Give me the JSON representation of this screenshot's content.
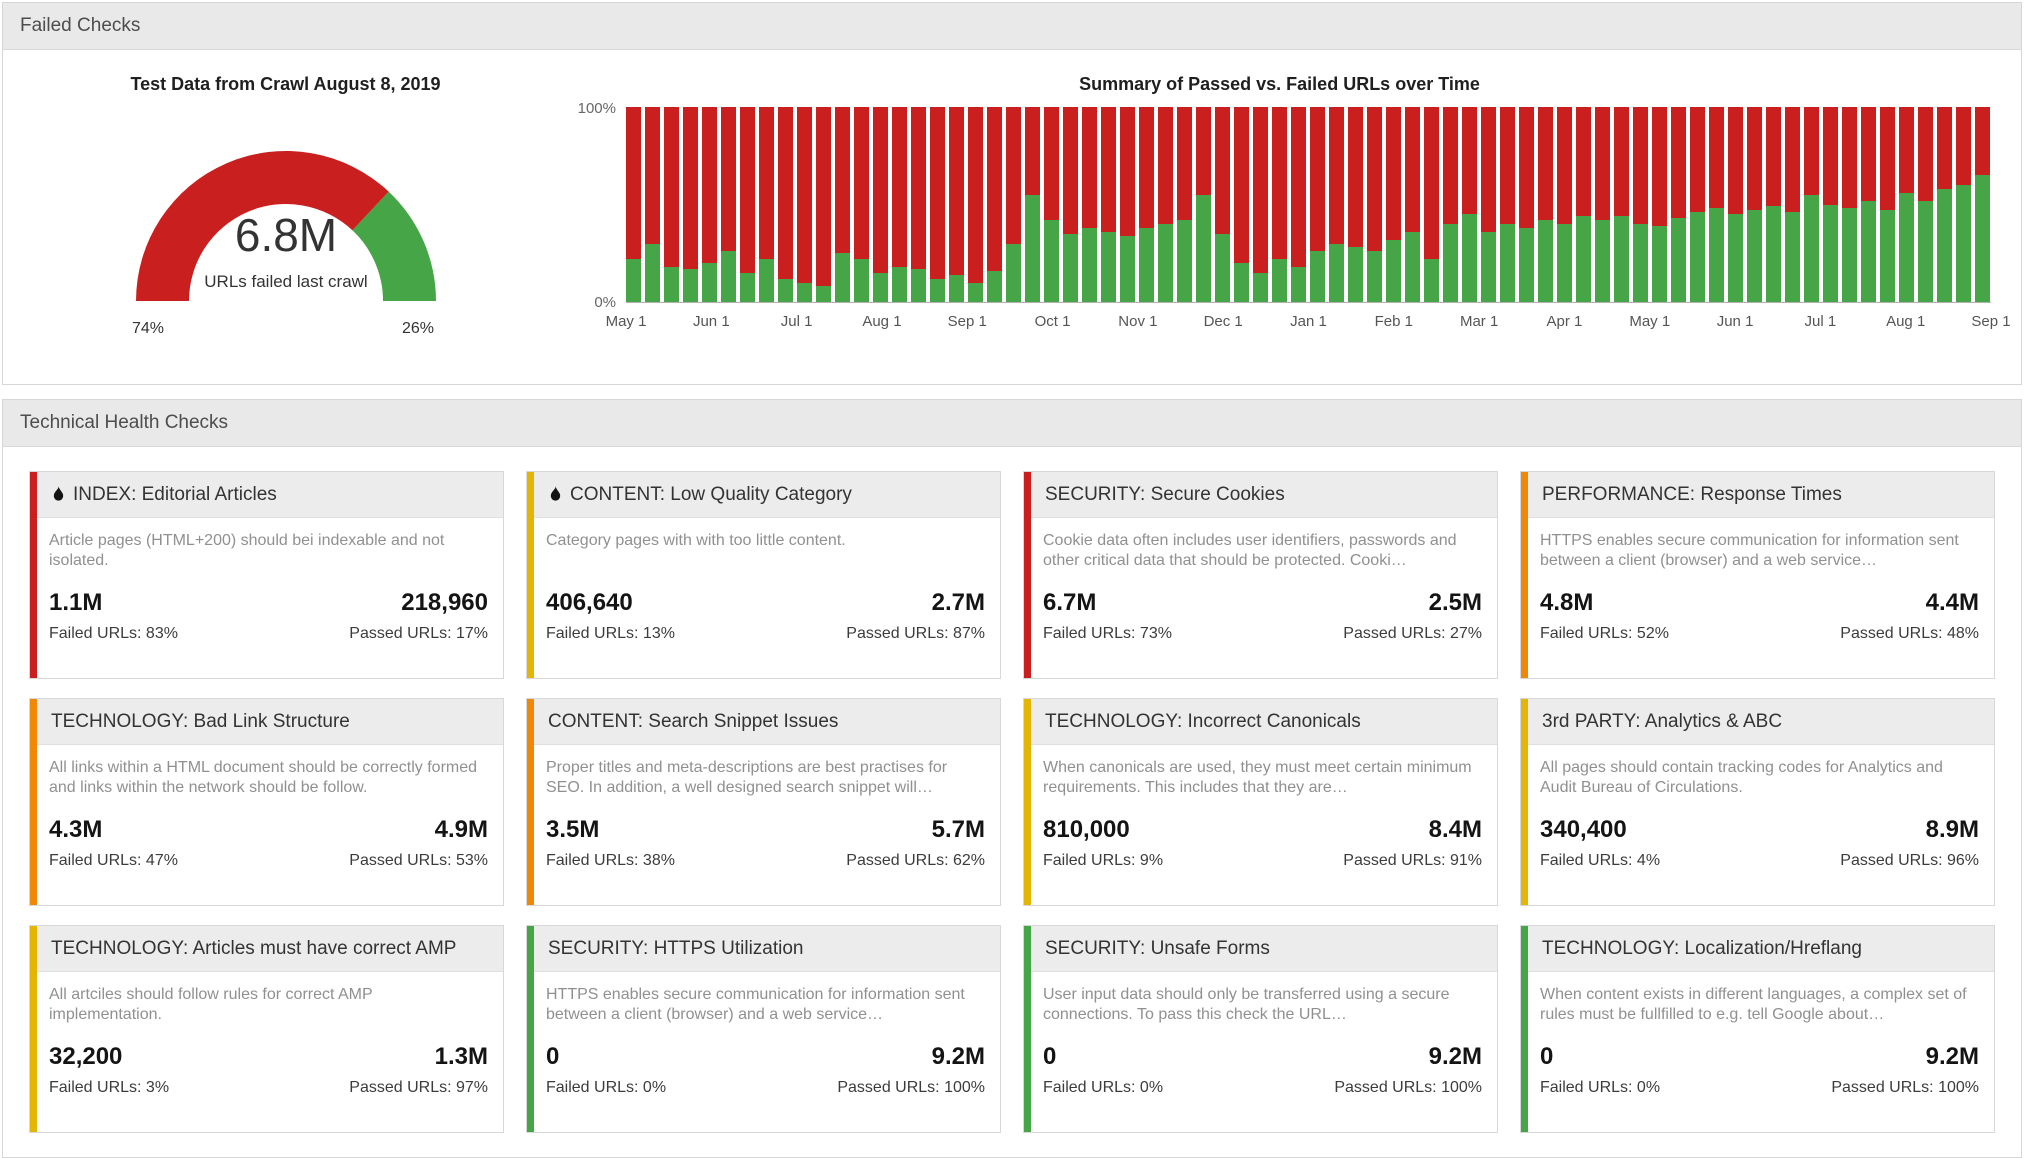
{
  "panels": {
    "failed_checks": {
      "title": "Failed Checks"
    },
    "technical_health": {
      "title": "Technical Health Checks"
    }
  },
  "colors": {
    "passed_green": "#46a546",
    "failed_red": "#c9201f",
    "accent_red": "#c9201f",
    "accent_orange": "#ef8807",
    "accent_yellow": "#e3b505",
    "accent_green": "#46a546"
  },
  "chart_data": [
    {
      "type": "gauge",
      "title": "Test Data from Crawl August 8, 2019",
      "center_value": "6.8M",
      "center_label": "URLs failed last crawl",
      "left_label": "74%",
      "right_label": "26%",
      "segments": [
        {
          "name": "Failed",
          "pct": 74,
          "color": "#c9201f"
        },
        {
          "name": "Passed",
          "pct": 26,
          "color": "#46a546"
        }
      ]
    },
    {
      "type": "bar",
      "stacked": true,
      "title": "Summary of Passed vs. Failed URLs over Time",
      "ylabel": "",
      "xlabel": "",
      "y_axis": {
        "max_label": "100%",
        "min_label": "0%",
        "range": [
          0,
          100
        ]
      },
      "x_tick_labels": [
        "May 1",
        "Jun 1",
        "Jul 1",
        "Aug 1",
        "Sep 1",
        "Oct 1",
        "Nov 1",
        "Dec 1",
        "Jan 1",
        "Feb 1",
        "Mar 1",
        "Apr 1",
        "May 1",
        "Jun 1",
        "Jul 1",
        "Aug 1",
        "Sep 1"
      ],
      "series": [
        {
          "name": "Passed",
          "color": "#46a546",
          "values": [
            22,
            30,
            18,
            17,
            20,
            26,
            15,
            22,
            12,
            10,
            8,
            25,
            22,
            15,
            18,
            17,
            12,
            14,
            10,
            16,
            30,
            55,
            42,
            35,
            38,
            36,
            34,
            38,
            40,
            42,
            55,
            35,
            20,
            15,
            22,
            18,
            26,
            30,
            28,
            26,
            32,
            36,
            22,
            40,
            45,
            36,
            40,
            38,
            42,
            40,
            44,
            42,
            44,
            40,
            39,
            43,
            46,
            48,
            45,
            47,
            49,
            46,
            55,
            50,
            48,
            52,
            47,
            56,
            52,
            58,
            60,
            65
          ]
        },
        {
          "name": "Failed",
          "color": "#c9201f",
          "values": [
            78,
            70,
            82,
            83,
            80,
            74,
            85,
            78,
            88,
            90,
            92,
            75,
            78,
            85,
            82,
            83,
            88,
            86,
            90,
            84,
            70,
            45,
            58,
            65,
            62,
            64,
            66,
            62,
            60,
            58,
            45,
            65,
            80,
            85,
            78,
            82,
            74,
            70,
            72,
            74,
            68,
            64,
            78,
            60,
            55,
            64,
            60,
            62,
            58,
            60,
            56,
            58,
            56,
            60,
            61,
            57,
            54,
            52,
            55,
            53,
            51,
            54,
            45,
            50,
            52,
            48,
            53,
            44,
            48,
            42,
            40,
            35
          ]
        }
      ]
    }
  ],
  "cards": [
    {
      "accent_color": "#c9201f",
      "flame": true,
      "title": "INDEX: Editorial Articles",
      "description": "Article pages (HTML+200) should bei indexable and not isolated.",
      "failed_value": "1.1M",
      "passed_value": "218,960",
      "failed_caption": "Failed URLs: 83%",
      "passed_caption": "Passed URLs: 17%"
    },
    {
      "accent_color": "#e3b505",
      "flame": true,
      "title": "CONTENT: Low Quality Category",
      "description": "Category pages with with too little content.",
      "failed_value": "406,640",
      "passed_value": "2.7M",
      "failed_caption": "Failed URLs: 13%",
      "passed_caption": "Passed URLs: 87%"
    },
    {
      "accent_color": "#c9201f",
      "flame": false,
      "title": "SECURITY: Secure Cookies",
      "description": "Cookie data often includes user identifiers, passwords and other critical data that should be protected. Cooki…",
      "failed_value": "6.7M",
      "passed_value": "2.5M",
      "failed_caption": "Failed URLs: 73%",
      "passed_caption": "Passed URLs: 27%"
    },
    {
      "accent_color": "#ef8807",
      "flame": false,
      "title": "PERFORMANCE: Response Times",
      "description": "HTTPS enables secure communication for information sent between a client (browser) and a web service…",
      "failed_value": "4.8M",
      "passed_value": "4.4M",
      "failed_caption": "Failed URLs: 52%",
      "passed_caption": "Passed URLs: 48%"
    },
    {
      "accent_color": "#ef8807",
      "flame": false,
      "title": "TECHNOLOGY: Bad Link Structure",
      "description": "All links within a HTML document should be correctly formed and links within the network should be follow.",
      "failed_value": "4.3M",
      "passed_value": "4.9M",
      "failed_caption": "Failed URLs: 47%",
      "passed_caption": "Passed URLs: 53%"
    },
    {
      "accent_color": "#ef8807",
      "flame": false,
      "title": "CONTENT: Search Snippet Issues",
      "description": "Proper titles and meta-descriptions are best practises for SEO. In addition, a well designed search snippet will…",
      "failed_value": "3.5M",
      "passed_value": "5.7M",
      "failed_caption": "Failed URLs: 38%",
      "passed_caption": "Passed URLs: 62%"
    },
    {
      "accent_color": "#e3b505",
      "flame": false,
      "title": "TECHNOLOGY: Incorrect Canonicals",
      "description": "When canonicals are used, they must meet certain minimum requirements. This includes that they are…",
      "failed_value": "810,000",
      "passed_value": "8.4M",
      "failed_caption": "Failed URLs: 9%",
      "passed_caption": "Passed URLs: 91%"
    },
    {
      "accent_color": "#e3b505",
      "flame": false,
      "title": "3rd PARTY: Analytics & ABC",
      "description": "All pages should contain tracking codes for Analytics and Audit Bureau of Circulations.",
      "failed_value": "340,400",
      "passed_value": "8.9M",
      "failed_caption": "Failed URLs: 4%",
      "passed_caption": "Passed URLs: 96%"
    },
    {
      "accent_color": "#e3b505",
      "flame": false,
      "title": "TECHNOLOGY: Articles must have correct AMP",
      "description": "All artciles should follow rules for correct AMP implementation.",
      "failed_value": "32,200",
      "passed_value": "1.3M",
      "failed_caption": "Failed URLs: 3%",
      "passed_caption": "Passed URLs: 97%"
    },
    {
      "accent_color": "#46a546",
      "flame": false,
      "title": "SECURITY: HTTPS Utilization",
      "description": "HTTPS enables secure communication for information sent between a client (browser) and a web service…",
      "failed_value": "0",
      "passed_value": "9.2M",
      "failed_caption": "Failed URLs: 0%",
      "passed_caption": "Passed URLs: 100%"
    },
    {
      "accent_color": "#46a546",
      "flame": false,
      "title": "SECURITY: Unsafe Forms",
      "description": "User input data should only be transferred using a secure connections. To pass this check the URL…",
      "failed_value": "0",
      "passed_value": "9.2M",
      "failed_caption": "Failed URLs: 0%",
      "passed_caption": "Passed URLs: 100%"
    },
    {
      "accent_color": "#46a546",
      "flame": false,
      "title": "TECHNOLOGY: Localization/Hreflang",
      "description": "When content exists in different languages, a complex set of rules must be fullfilled to e.g. tell Google about…",
      "failed_value": "0",
      "passed_value": "9.2M",
      "failed_caption": "Failed URLs: 0%",
      "passed_caption": "Passed URLs: 100%"
    }
  ]
}
